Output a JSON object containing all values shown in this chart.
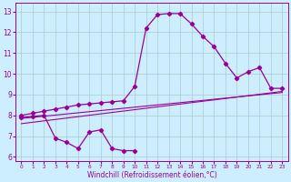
{
  "title": "",
  "xlabel": "Windchill (Refroidissement éolien,°C)",
  "ylabel": "",
  "background_color": "#cceeff",
  "plot_bg_color": "#cceeff",
  "line_color": "#990099",
  "grid_color": "#aacccc",
  "x_values": [
    0,
    1,
    2,
    3,
    4,
    5,
    6,
    7,
    8,
    9,
    10,
    11,
    12,
    13,
    14,
    15,
    16,
    17,
    18,
    19,
    20,
    21,
    22,
    23
  ],
  "curve1_y": [
    8.0,
    8.1,
    8.2,
    8.3,
    8.4,
    8.5,
    8.55,
    8.6,
    8.65,
    8.7,
    9.4,
    12.2,
    12.85,
    12.9,
    12.9,
    12.4,
    11.8,
    11.3,
    10.5,
    9.8,
    10.1,
    10.3,
    9.3,
    9.3
  ],
  "curve2_y": [
    7.9,
    7.95,
    8.0,
    6.9,
    6.7,
    6.4,
    7.2,
    7.3,
    6.4,
    6.3,
    6.3,
    null,
    null,
    null,
    null,
    null,
    null,
    null,
    null,
    null,
    null,
    null,
    null,
    null
  ],
  "line1_x": [
    0,
    23
  ],
  "line1_y": [
    7.85,
    9.1
  ],
  "line2_x": [
    0,
    23
  ],
  "line2_y": [
    7.6,
    9.15
  ],
  "ylim": [
    5.8,
    13.4
  ],
  "xlim": [
    -0.5,
    23.5
  ],
  "yticks": [
    6,
    7,
    8,
    9,
    10,
    11,
    12,
    13
  ],
  "xticks": [
    0,
    1,
    2,
    3,
    4,
    5,
    6,
    7,
    8,
    9,
    10,
    11,
    12,
    13,
    14,
    15,
    16,
    17,
    18,
    19,
    20,
    21,
    22,
    23
  ]
}
